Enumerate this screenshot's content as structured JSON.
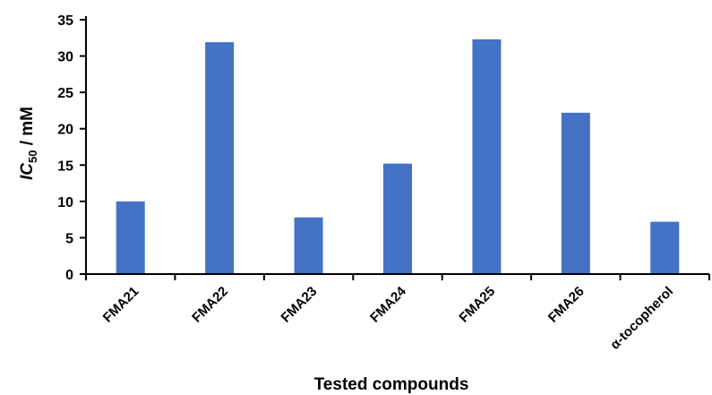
{
  "chart_data": {
    "type": "bar",
    "title": "",
    "xlabel": "Tested compounds",
    "ylabel": {
      "prefix": "IC",
      "subscript": "50",
      "suffix": " / mM"
    },
    "categories": [
      "FMA21",
      "FMA22",
      "FMA23",
      "FMA24",
      "FMA25",
      "FMA26",
      "α-tocopherol"
    ],
    "values": [
      10.0,
      31.9,
      7.8,
      15.2,
      32.3,
      22.2,
      7.2
    ],
    "ylim": [
      0,
      35
    ],
    "yticks": [
      "0",
      "5",
      "10",
      "15",
      "20",
      "25",
      "30",
      "35"
    ],
    "bar_color": "#4472C4",
    "grid": false,
    "legend": "none"
  }
}
